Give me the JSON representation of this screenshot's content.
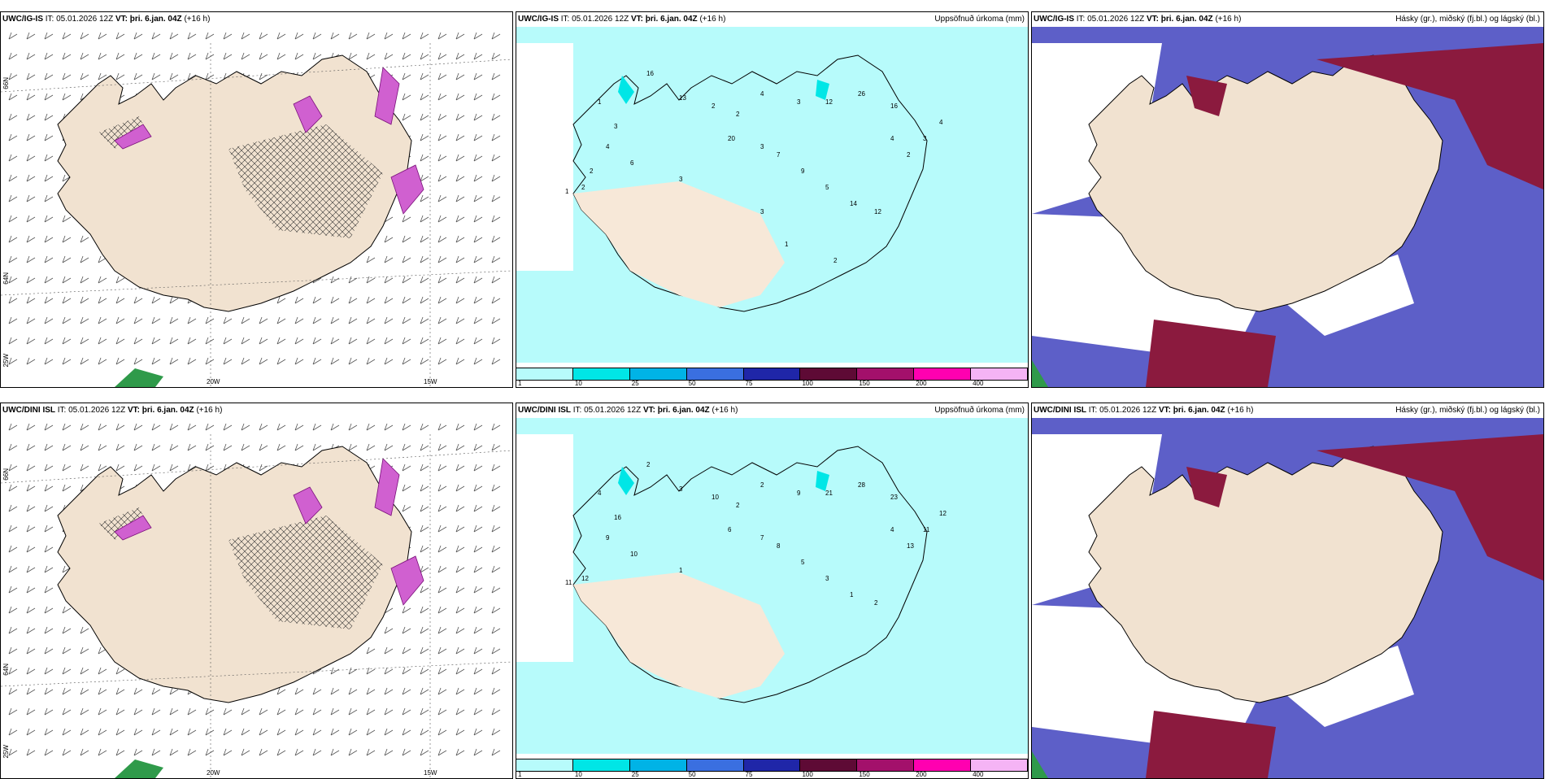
{
  "legend": {
    "labels": [
      "1",
      "10",
      "25",
      "50",
      "75",
      "100",
      "150",
      "200",
      "400"
    ],
    "colors": [
      "#b7fbfb",
      "#00e6e6",
      "#00b3e6",
      "#3a6fe0",
      "#1f26a8",
      "#5e0a35",
      "#a3106b",
      "#ff00b0",
      "#f5b4f5"
    ]
  },
  "axis_labels": {
    "lon": [
      "20W",
      "15W"
    ],
    "lat": [
      "66N",
      "64N",
      "25W"
    ]
  },
  "panels": [
    {
      "model": "UWC/IG-IS",
      "it": "IT: 05.01.2026 12Z",
      "vt_label": "VT:",
      "vt": "þri. 6.jan. 04Z",
      "lead": "(+16 h)",
      "title": "",
      "values": []
    },
    {
      "model": "UWC/IG-IS",
      "it": "IT: 05.01.2026 12Z",
      "vt_label": "VT:",
      "vt": "þri. 6.jan. 04Z",
      "lead": "(+16 h)",
      "title": "Uppsöfnuð úrkoma (mm)",
      "values": [
        "16",
        "1",
        "3",
        "13",
        "2",
        "2",
        "4",
        "3",
        "12",
        "26",
        "16",
        "4",
        "4",
        "3",
        "2",
        "20",
        "3",
        "7",
        "9",
        "5",
        "14",
        "12",
        "3",
        "6",
        "4",
        "2",
        "1",
        "2",
        "3",
        "1",
        "2"
      ]
    },
    {
      "model": "UWC/IG-IS",
      "it": "IT: 05.01.2026 12Z",
      "vt_label": "VT:",
      "vt": "þri. 6.jan. 04Z",
      "lead": "(+16 h)",
      "title": "Hásky (gr.), miðský (fj.bl.) og lágský (bl.)",
      "values": []
    },
    {
      "model": "UWC/DINI ISL",
      "it": "IT: 05.01.2026 12Z",
      "vt_label": "VT:",
      "vt": "þri. 6.jan. 04Z",
      "lead": "(+16 h)",
      "title": "",
      "values": []
    },
    {
      "model": "UWC/DINI ISL",
      "it": "IT: 05.01.2026 12Z",
      "vt_label": "VT:",
      "vt": "þri. 6.jan. 04Z",
      "lead": "(+16 h)",
      "title": "Uppsöfnuð úrkoma (mm)",
      "values": [
        "2",
        "4",
        "16",
        "3",
        "10",
        "2",
        "2",
        "9",
        "21",
        "28",
        "23",
        "4",
        "12",
        "11",
        "13",
        "6",
        "7",
        "8",
        "5",
        "3",
        "1",
        "2",
        "1",
        "10",
        "9",
        "12",
        "11"
      ]
    },
    {
      "model": "UWC/DINI ISL",
      "it": "IT: 05.01.2026 12Z",
      "vt_label": "VT:",
      "vt": "þri. 6.jan. 04Z",
      "lead": "(+16 h)",
      "title": "Hásky (gr.), miðský (fj.bl.) og lágský (bl.)",
      "values": []
    }
  ]
}
